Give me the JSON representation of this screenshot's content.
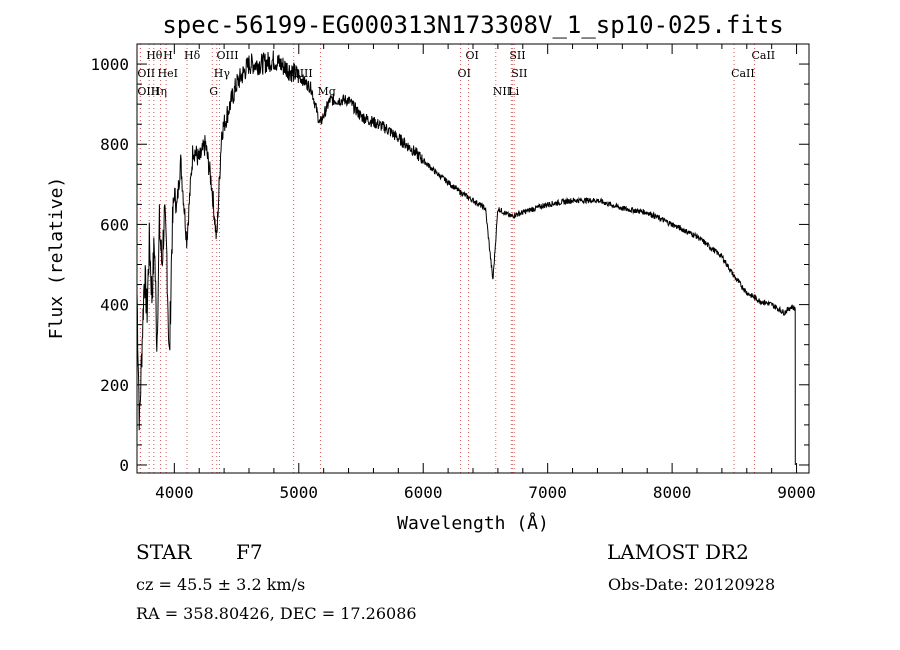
{
  "chart_data": {
    "type": "line",
    "title": "spec-56199-EG000313N173308V_1_sp10-025.fits",
    "xlabel": "Wavelength (Å)",
    "ylabel": "Flux (relative)",
    "xlim": [
      3700,
      9100
    ],
    "ylim": [
      -20,
      1050
    ],
    "x_ticks": [
      4000,
      5000,
      6000,
      7000,
      8000,
      9000
    ],
    "y_ticks": [
      0,
      200,
      400,
      600,
      800,
      1000
    ],
    "grid": false,
    "line_color": "#000000",
    "marker_color": "#d06060",
    "spectrum_anchors": [
      [
        3700,
        430
      ],
      [
        3720,
        100
      ],
      [
        3740,
        300
      ],
      [
        3760,
        480
      ],
      [
        3780,
        380
      ],
      [
        3800,
        560
      ],
      [
        3820,
        420
      ],
      [
        3840,
        560
      ],
      [
        3860,
        300
      ],
      [
        3880,
        600
      ],
      [
        3900,
        500
      ],
      [
        3920,
        620
      ],
      [
        3940,
        520
      ],
      [
        3960,
        250
      ],
      [
        3980,
        560
      ],
      [
        4000,
        680
      ],
      [
        4020,
        640
      ],
      [
        4050,
        760
      ],
      [
        4100,
        560
      ],
      [
        4150,
        790
      ],
      [
        4200,
        760
      ],
      [
        4250,
        800
      ],
      [
        4300,
        700
      ],
      [
        4340,
        560
      ],
      [
        4380,
        830
      ],
      [
        4430,
        880
      ],
      [
        4500,
        950
      ],
      [
        4600,
        1000
      ],
      [
        4700,
        1000
      ],
      [
        4800,
        1010
      ],
      [
        4900,
        990
      ],
      [
        5000,
        970
      ],
      [
        5100,
        940
      ],
      [
        5170,
        850
      ],
      [
        5250,
        910
      ],
      [
        5400,
        910
      ],
      [
        5500,
        870
      ],
      [
        5700,
        840
      ],
      [
        5900,
        790
      ],
      [
        6100,
        730
      ],
      [
        6300,
        680
      ],
      [
        6500,
        640
      ],
      [
        6560,
        460
      ],
      [
        6600,
        640
      ],
      [
        6700,
        620
      ],
      [
        6800,
        630
      ],
      [
        7000,
        650
      ],
      [
        7200,
        660
      ],
      [
        7400,
        660
      ],
      [
        7600,
        640
      ],
      [
        7800,
        630
      ],
      [
        8000,
        600
      ],
      [
        8200,
        570
      ],
      [
        8400,
        520
      ],
      [
        8500,
        470
      ],
      [
        8600,
        430
      ],
      [
        8700,
        410
      ],
      [
        8800,
        400
      ],
      [
        8900,
        380
      ],
      [
        8960,
        395
      ],
      [
        8990,
        390
      ]
    ],
    "line_markers": [
      {
        "label": "Hθ",
        "wavelength": 3798
      },
      {
        "label": "OII",
        "wavelength": 3727
      },
      {
        "label": "OIII",
        "wavelength": 3727
      },
      {
        "label": "H",
        "wavelength": 3934
      },
      {
        "label": "HeI",
        "wavelength": 3889
      },
      {
        "label": "Hη",
        "wavelength": 3835
      },
      {
        "label": "Hδ",
        "wavelength": 4102
      },
      {
        "label": "Hγ",
        "wavelength": 4341
      },
      {
        "label": "G",
        "wavelength": 4305
      },
      {
        "label": "OIII",
        "wavelength": 4363
      },
      {
        "label": "OIII",
        "wavelength": 4959
      },
      {
        "label": "Mg",
        "wavelength": 5175
      },
      {
        "label": "OI",
        "wavelength": 6364
      },
      {
        "label": "OI",
        "wavelength": 6300
      },
      {
        "label": "NII",
        "wavelength": 6583
      },
      {
        "label": "SII",
        "wavelength": 6716
      },
      {
        "label": "SII",
        "wavelength": 6731
      },
      {
        "label": "Li",
        "wavelength": 6708
      },
      {
        "label": "CaII",
        "wavelength": 8662
      },
      {
        "label": "CaII",
        "wavelength": 8498
      }
    ]
  },
  "info": {
    "object_class": "STAR",
    "subclass": "F7",
    "survey": "LAMOST DR2",
    "redshift": "cz = 45.5 ± 3.2 km/s",
    "obs_date": "Obs-Date: 20120928",
    "coords": "RA = 358.80426, DEC =  17.26086"
  }
}
